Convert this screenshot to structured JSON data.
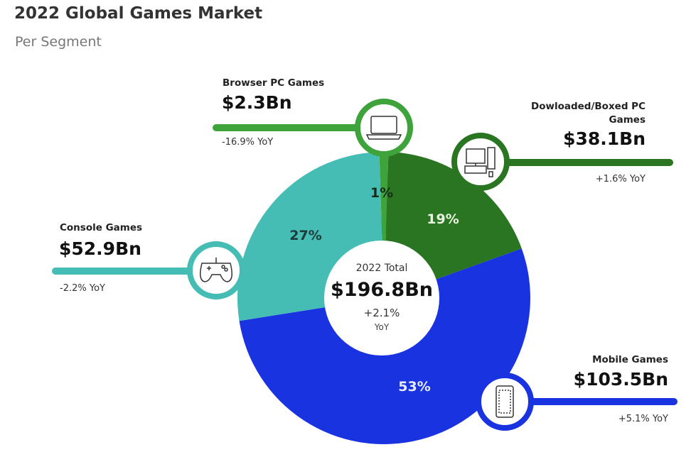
{
  "title": "2022 Global Games Market",
  "subtitle": "Per Segment",
  "chart_data": {
    "type": "pie",
    "variant": "donut",
    "title": "2022 Global Games Market",
    "subtitle": "Per Segment",
    "center": {
      "label": "2022 Total",
      "value": "$196.8Bn",
      "change": "+2.1%",
      "change_unit": "YoY"
    },
    "segments": [
      {
        "name": "Browser PC Games",
        "value_bn": 2.3,
        "value_label": "$2.3Bn",
        "share_pct": 1,
        "share_label": "1%",
        "yoy": "-16.9% YoY",
        "color": "#3ea33a",
        "icon": "laptop-icon"
      },
      {
        "name": "Dowloaded/Boxed PC Games",
        "value_bn": 38.1,
        "value_label": "$38.1Bn",
        "share_pct": 19,
        "share_label": "19%",
        "yoy": "+1.6% YoY",
        "color": "#2a7521",
        "icon": "desktop-computer-icon"
      },
      {
        "name": "Mobile Games",
        "value_bn": 103.5,
        "value_label": "$103.5Bn",
        "share_pct": 53,
        "share_label": "53%",
        "yoy": "+5.1% YoY",
        "color": "#1a33e0",
        "icon": "smartphone-icon"
      },
      {
        "name": "Console Games",
        "value_bn": 52.9,
        "value_label": "$52.9Bn",
        "share_pct": 27,
        "share_label": "27%",
        "yoy": "-2.2% YoY",
        "color": "#45bdb5",
        "icon": "gamepad-icon"
      }
    ]
  }
}
